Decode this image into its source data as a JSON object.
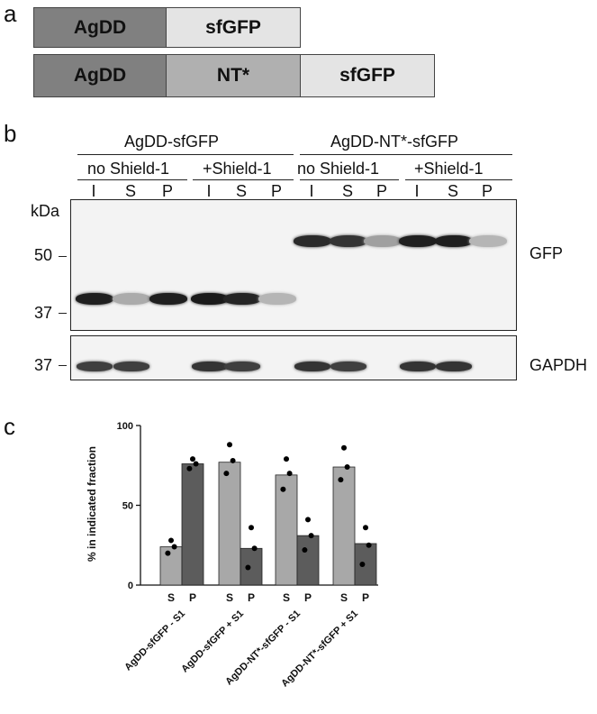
{
  "panel_a": {
    "letter": "a",
    "construct1": {
      "seg1": "AgDD",
      "seg2": "sfGFP"
    },
    "construct2": {
      "seg1": "AgDD",
      "seg2": "NT*",
      "seg3": "sfGFP"
    },
    "colors": {
      "agdd": "#808080",
      "nt": "#b0b0b0",
      "sfgfp": "#e4e4e4"
    }
  },
  "panel_b": {
    "letter": "b",
    "group1": "AgDD-sfGFP",
    "group2": "AgDD-NT*-sfGFP",
    "cond_no": "no Shield-1",
    "cond_plus": "+Shield-1",
    "lanes": [
      "I",
      "S",
      "P",
      "I",
      "S",
      "P",
      "I",
      "S",
      "P",
      "I",
      "S",
      "P"
    ],
    "kda_label": "kDa",
    "mw_50": "50",
    "mw_37_top": "37",
    "mw_37_bottom": "37",
    "gfp_label": "GFP",
    "gapdh_label": "GAPDH",
    "gfp_band_intensity": [
      0.95,
      0.3,
      0.95,
      0.97,
      0.92,
      0.25,
      0.9,
      0.85,
      0.35,
      0.95,
      0.95,
      0.25
    ],
    "gapdh_band_intensity": [
      0.8,
      0.8,
      0.0,
      0.85,
      0.8,
      0.0,
      0.85,
      0.8,
      0.0,
      0.85,
      0.85,
      0.0
    ]
  },
  "panel_c": {
    "letter": "c",
    "chart_data": {
      "type": "bar",
      "ylabel": "% in indicated fraction",
      "ylim": [
        0,
        100
      ],
      "yticks": [
        "0",
        "50",
        "100"
      ],
      "categories": [
        "AgDD-sfGFP - S1",
        "AgDD-sfGFP + S1",
        "AgDD-NT*-sfGFP - S1",
        "AgDD-NT*-sfGFP + S1"
      ],
      "bar_labels": [
        "S",
        "P"
      ],
      "series": [
        {
          "name": "S",
          "values": [
            24,
            77,
            69,
            74
          ],
          "color": "#a8a8a8",
          "points": [
            [
              20,
              24,
              28
            ],
            [
              70,
              78,
              88
            ],
            [
              60,
              70,
              79
            ],
            [
              66,
              74,
              86
            ]
          ]
        },
        {
          "name": "P",
          "values": [
            76,
            23,
            31,
            26
          ],
          "color": "#5c5c5c",
          "points": [
            [
              73,
              76,
              79
            ],
            [
              11,
              23,
              36
            ],
            [
              22,
              31,
              41
            ],
            [
              13,
              25,
              36
            ]
          ]
        }
      ],
      "grid": false,
      "legend": "none"
    }
  }
}
